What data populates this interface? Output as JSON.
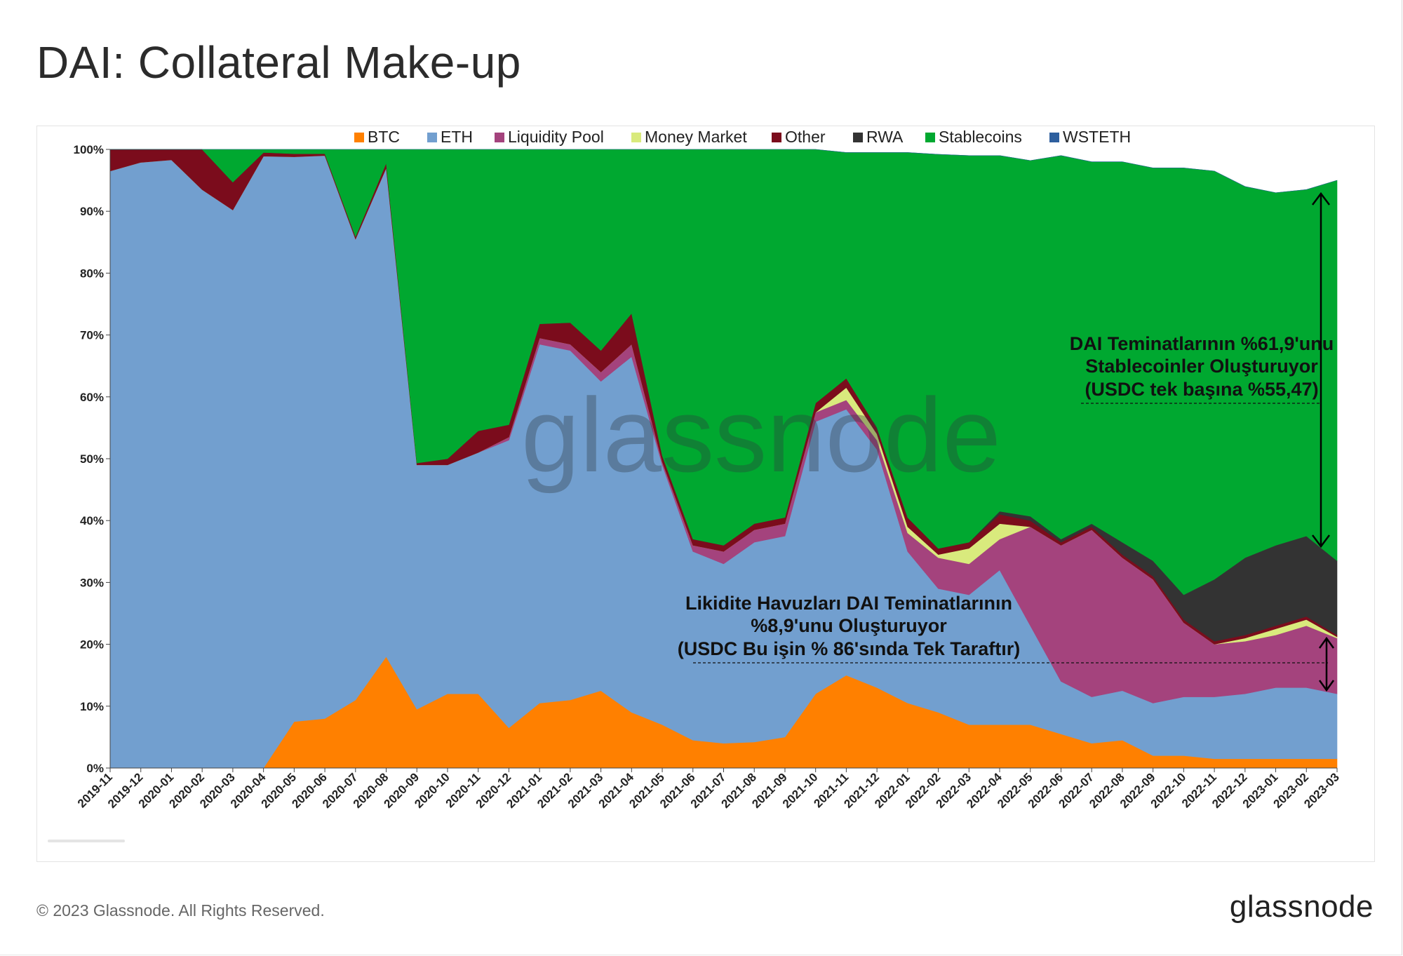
{
  "header": {
    "title": "DAI: Collateral Make-up"
  },
  "footer": {
    "copyright": "© 2023 Glassnode. All Rights Reserved.",
    "brand": "glassnode"
  },
  "watermark": "glassnode",
  "chart_data": {
    "type": "area",
    "stacked": true,
    "normalized": true,
    "categories": [
      "2019-11",
      "2019-12",
      "2020-01",
      "2020-02",
      "2020-03",
      "2020-04",
      "2020-05",
      "2020-06",
      "2020-07",
      "2020-08",
      "2020-09",
      "2020-10",
      "2020-11",
      "2020-12",
      "2021-01",
      "2021-02",
      "2021-03",
      "2021-04",
      "2021-05",
      "2021-06",
      "2021-07",
      "2021-08",
      "2021-09",
      "2021-10",
      "2021-11",
      "2021-12",
      "2022-01",
      "2022-02",
      "2022-03",
      "2022-04",
      "2022-05",
      "2022-06",
      "2022-07",
      "2022-08",
      "2022-09",
      "2022-10",
      "2022-11",
      "2022-12",
      "2023-01",
      "2023-02",
      "2023-03"
    ],
    "yticks": [
      "0%",
      "10%",
      "20%",
      "30%",
      "40%",
      "50%",
      "60%",
      "70%",
      "80%",
      "90%",
      "100%"
    ],
    "ylim": [
      0,
      100
    ],
    "legend_position": "top",
    "series": [
      {
        "name": "BTC",
        "color": "#ff8000",
        "values": [
          0,
          0,
          0,
          0,
          0,
          0,
          7.5,
          8,
          11,
          18,
          9.5,
          12,
          12,
          6.5,
          10.5,
          11,
          12.5,
          9,
          7,
          4.5,
          4,
          4.2,
          5,
          12,
          15,
          13,
          10.5,
          9,
          7,
          7,
          7,
          5.5,
          4,
          4.5,
          2,
          2,
          1.5,
          1.5,
          1.5,
          1.5,
          1.5
        ]
      },
      {
        "name": "ETH",
        "color": "#729fcf",
        "values": [
          96.5,
          97.9,
          98.3,
          93.5,
          90.2,
          98.9,
          91.3,
          91,
          74.5,
          79,
          39.5,
          37,
          39,
          46.5,
          58,
          56.5,
          50,
          57.5,
          42,
          30.5,
          29,
          32.3,
          32.5,
          44,
          43,
          38.5,
          24.5,
          20,
          21,
          25,
          16,
          8.5,
          7.5,
          8,
          8.5,
          9.5,
          10,
          10.5,
          11.5,
          11.5,
          10.5
        ]
      },
      {
        "name": "Liquidity Pool",
        "color": "#a4437d",
        "values": [
          0,
          0,
          0,
          0,
          0,
          0,
          0,
          0,
          0,
          0,
          0,
          0,
          0,
          0.5,
          1,
          1,
          1.5,
          2,
          0.5,
          1,
          2,
          2,
          2,
          1.5,
          1.5,
          1.5,
          3,
          5,
          5,
          5,
          16,
          22,
          27,
          21.5,
          20,
          12,
          8.5,
          8.5,
          8.5,
          10,
          9
        ]
      },
      {
        "name": "Money Market",
        "color": "#d9ea7d",
        "values": [
          0,
          0,
          0,
          0,
          0,
          0,
          0,
          0,
          0,
          0,
          0,
          0,
          0,
          0,
          0,
          0,
          0,
          0,
          0,
          0,
          0,
          0,
          0,
          0,
          2,
          1,
          1,
          0.5,
          2.5,
          2.5,
          0,
          0,
          0,
          0,
          0,
          0,
          0,
          0.5,
          1,
          1,
          0.2
        ]
      },
      {
        "name": "Other",
        "color": "#7b0c1c",
        "values": [
          3.5,
          2.1,
          1.7,
          6.5,
          4.5,
          0.6,
          0.5,
          0.3,
          0.4,
          0.8,
          0.3,
          1,
          3.5,
          2,
          2.3,
          3.5,
          3.5,
          5,
          1,
          1,
          1,
          1,
          1,
          1.5,
          1.5,
          1,
          1.5,
          1,
          1,
          1.5,
          1,
          0.5,
          0.5,
          0.5,
          0.5,
          0.5,
          0.5,
          0.5,
          0.5,
          0.5,
          0.3
        ]
      },
      {
        "name": "RWA",
        "color": "#333333",
        "values": [
          0,
          0,
          0,
          0,
          0,
          0,
          0,
          0,
          0,
          0,
          0,
          0,
          0,
          0,
          0,
          0,
          0,
          0,
          0,
          0,
          0,
          0,
          0,
          0,
          0,
          0,
          0,
          0,
          0,
          0.5,
          0.7,
          0.5,
          0.5,
          2,
          2.5,
          4,
          10,
          12.5,
          13,
          13,
          12
        ]
      },
      {
        "name": "Stablecoins",
        "color": "#00a830",
        "values": [
          0,
          0,
          0,
          0,
          5.3,
          0.5,
          0.7,
          0.7,
          14.1,
          2.2,
          50.7,
          50,
          45.5,
          44.5,
          28.2,
          28,
          32.5,
          26.5,
          49.5,
          63,
          64,
          60.5,
          59.5,
          41,
          36.5,
          44.5,
          59,
          63.7,
          62.5,
          57.5,
          57.5,
          62,
          58.5,
          61.5,
          63.5,
          69,
          66,
          60,
          57,
          56,
          61.5
        ]
      },
      {
        "name": "WSTETH",
        "color": "#2e5f9e",
        "values": [
          0,
          0,
          0,
          0,
          0,
          0,
          0,
          0,
          0,
          0,
          0,
          0,
          0,
          0,
          0,
          0,
          0,
          0,
          0,
          0,
          0,
          0,
          0,
          0,
          0,
          0,
          0,
          0,
          0,
          0,
          0,
          0,
          0,
          0,
          0,
          0,
          0,
          0,
          0,
          0,
          0
        ]
      }
    ],
    "annotations": [
      {
        "lines": [
          "DAI Teminatlarının %61,9'unu",
          "Stablecoinler Oluşturuyor",
          "(USDC tek başına %55,47)"
        ]
      },
      {
        "lines": [
          "Likidite Havuzları DAI Teminatlarının",
          "%8,9'unu Oluşturuyor",
          "(USDC Bu işin % 86'sında Tek Taraftır)"
        ]
      }
    ]
  }
}
